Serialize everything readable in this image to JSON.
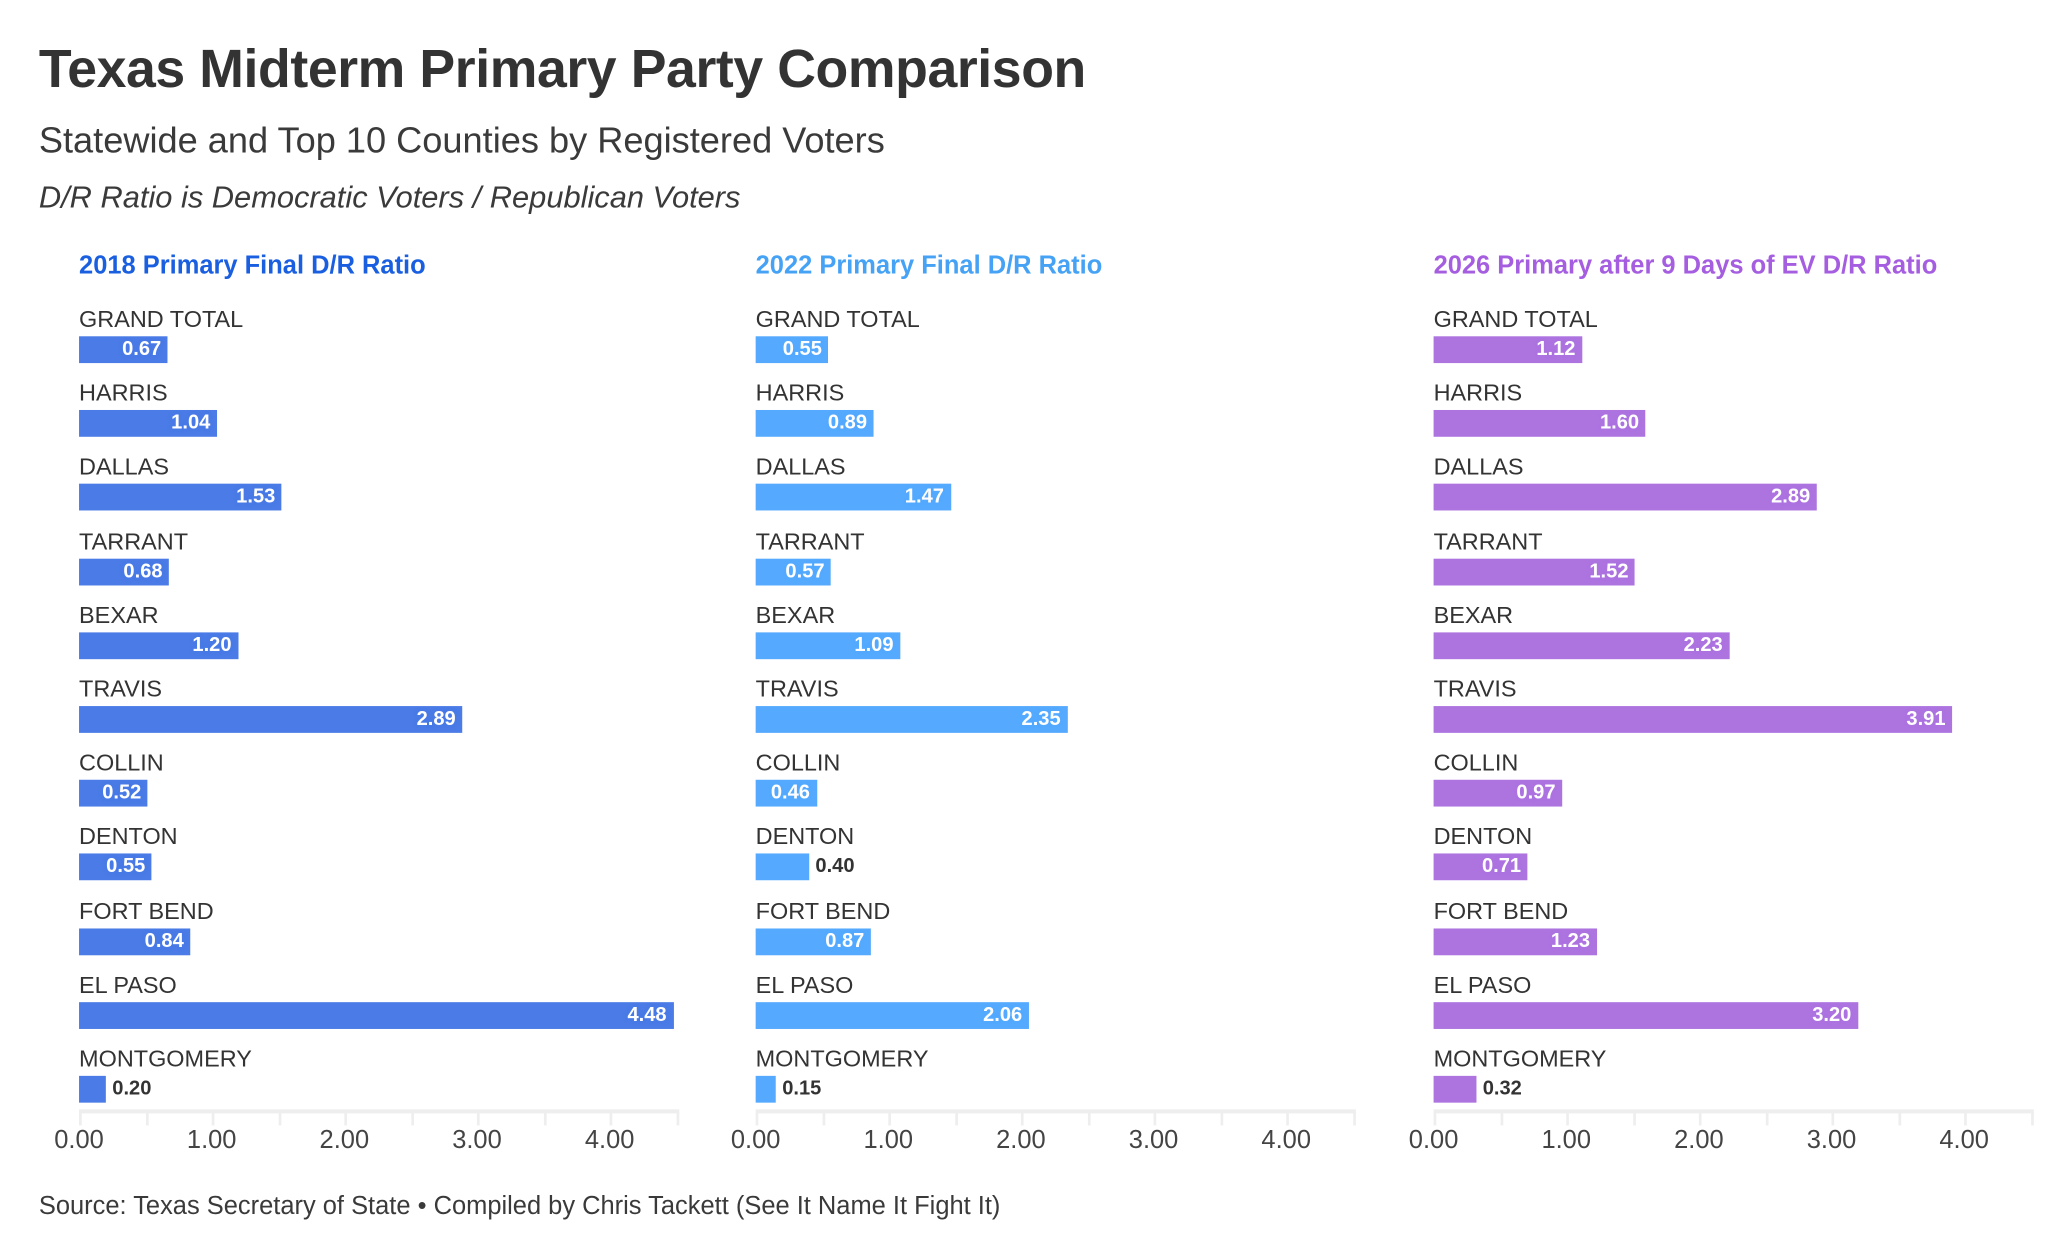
{
  "header": {
    "title": "Texas Midterm Primary Party Comparison",
    "subtitle": "Statewide and Top 10 Counties by Registered Voters",
    "note": "D/R Ratio is Democratic Voters / Republican Voters"
  },
  "footer": {
    "source": "Source: Texas Secretary of State • Compiled by Chris Tackett (See It Name It Fight It)"
  },
  "chart_data": [
    {
      "type": "bar",
      "orientation": "horizontal",
      "title": "2018 Primary Final D/R Ratio",
      "color": "#4a7be6",
      "title_color": "#1a5fe0",
      "categories": [
        "GRAND TOTAL",
        "HARRIS",
        "DALLAS",
        "TARRANT",
        "BEXAR",
        "TRAVIS",
        "COLLIN",
        "DENTON",
        "FORT BEND",
        "EL PASO",
        "MONTGOMERY"
      ],
      "values": [
        0.67,
        1.04,
        1.53,
        0.68,
        1.2,
        2.89,
        0.52,
        0.55,
        0.84,
        4.48,
        0.2
      ],
      "labels": [
        "0.67",
        "1.04",
        "1.53",
        "0.68",
        "1.20",
        "2.89",
        "0.52",
        "0.55",
        "0.84",
        "4.48",
        "0.20"
      ],
      "xlim": [
        0,
        4.5
      ],
      "xticks": [
        "0.00",
        "1.00",
        "2.00",
        "3.00",
        "4.00"
      ]
    },
    {
      "type": "bar",
      "orientation": "horizontal",
      "title": "2022 Primary Final D/R Ratio",
      "color": "#55aaff",
      "title_color": "#45a2f5",
      "categories": [
        "GRAND TOTAL",
        "HARRIS",
        "DALLAS",
        "TARRANT",
        "BEXAR",
        "TRAVIS",
        "COLLIN",
        "DENTON",
        "FORT BEND",
        "EL PASO",
        "MONTGOMERY"
      ],
      "values": [
        0.55,
        0.89,
        1.47,
        0.57,
        1.09,
        2.35,
        0.46,
        0.4,
        0.87,
        2.06,
        0.15
      ],
      "labels": [
        "0.55",
        "0.89",
        "1.47",
        "0.57",
        "1.09",
        "2.35",
        "0.46",
        "0.40",
        "0.87",
        "2.06",
        "0.15"
      ],
      "xlim": [
        0,
        4.5
      ],
      "xticks": [
        "0.00",
        "1.00",
        "2.00",
        "3.00",
        "4.00"
      ]
    },
    {
      "type": "bar",
      "orientation": "horizontal",
      "title": "2026 Primary after 9 Days of EV D/R Ratio",
      "color": "#ad74e0",
      "title_color": "#a65ee0",
      "categories": [
        "GRAND TOTAL",
        "HARRIS",
        "DALLAS",
        "TARRANT",
        "BEXAR",
        "TRAVIS",
        "COLLIN",
        "DENTON",
        "FORT BEND",
        "EL PASO",
        "MONTGOMERY"
      ],
      "values": [
        1.12,
        1.6,
        2.89,
        1.52,
        2.23,
        3.91,
        0.97,
        0.71,
        1.23,
        3.2,
        0.32
      ],
      "labels": [
        "1.12",
        "1.60",
        "2.89",
        "1.52",
        "2.23",
        "3.91",
        "0.97",
        "0.71",
        "1.23",
        "3.20",
        "0.32"
      ],
      "xlim": [
        0,
        4.5
      ],
      "xticks": [
        "0.00",
        "1.00",
        "2.00",
        "3.00",
        "4.00"
      ]
    }
  ]
}
